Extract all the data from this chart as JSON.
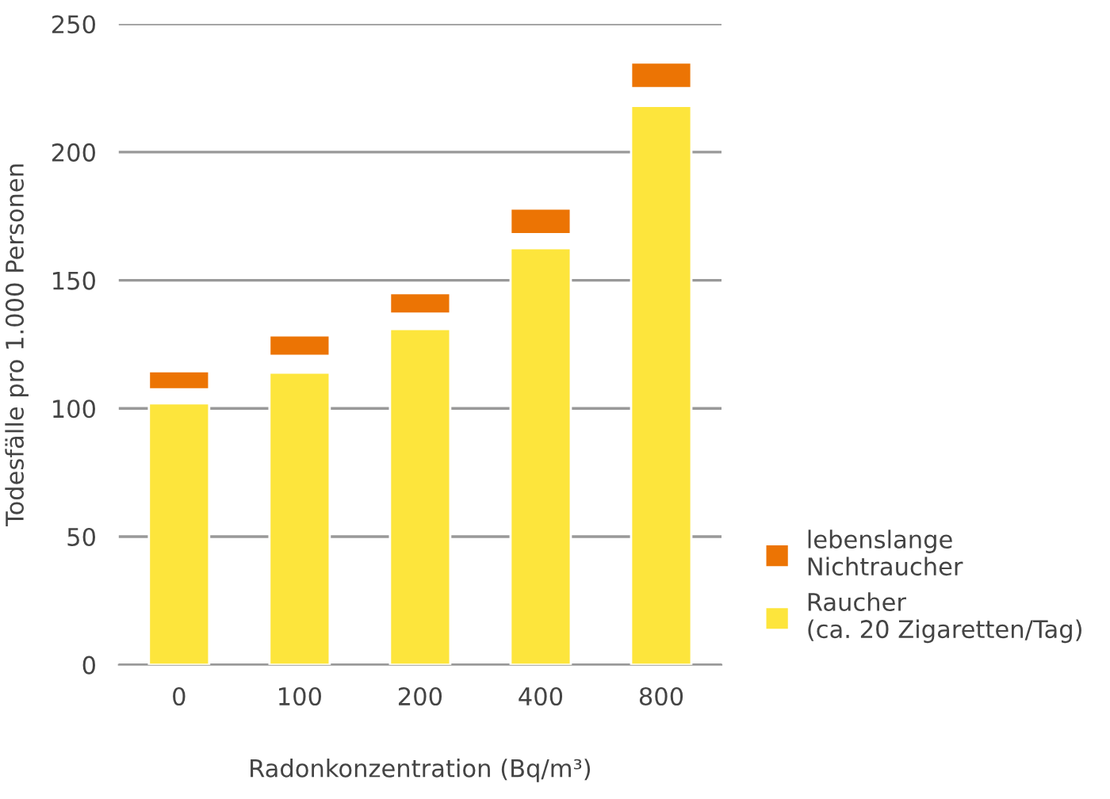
{
  "chart_data": {
    "type": "bar",
    "xlabel": "Radonkonzentration (Bq/m³)",
    "ylabel": "Todesfälle pro 1.000 Personen",
    "categories": [
      "0",
      "100",
      "200",
      "400",
      "800"
    ],
    "series": [
      {
        "name": "lebenslange\nNichtraucher",
        "color": "#ec7404",
        "values": [
          7,
          8,
          8,
          10,
          10
        ],
        "base": [
          107.5,
          120.5,
          137,
          168,
          225
        ]
      },
      {
        "name": "Raucher\n(ca. 20 Zigaretten/Tag)",
        "color": "#fde53c",
        "values": [
          102,
          114,
          131,
          162.5,
          218
        ]
      }
    ],
    "ylim": [
      0,
      250
    ],
    "yticks": [
      0,
      50,
      100,
      150,
      200,
      250
    ],
    "grid": "y",
    "legend": "bottom right"
  }
}
